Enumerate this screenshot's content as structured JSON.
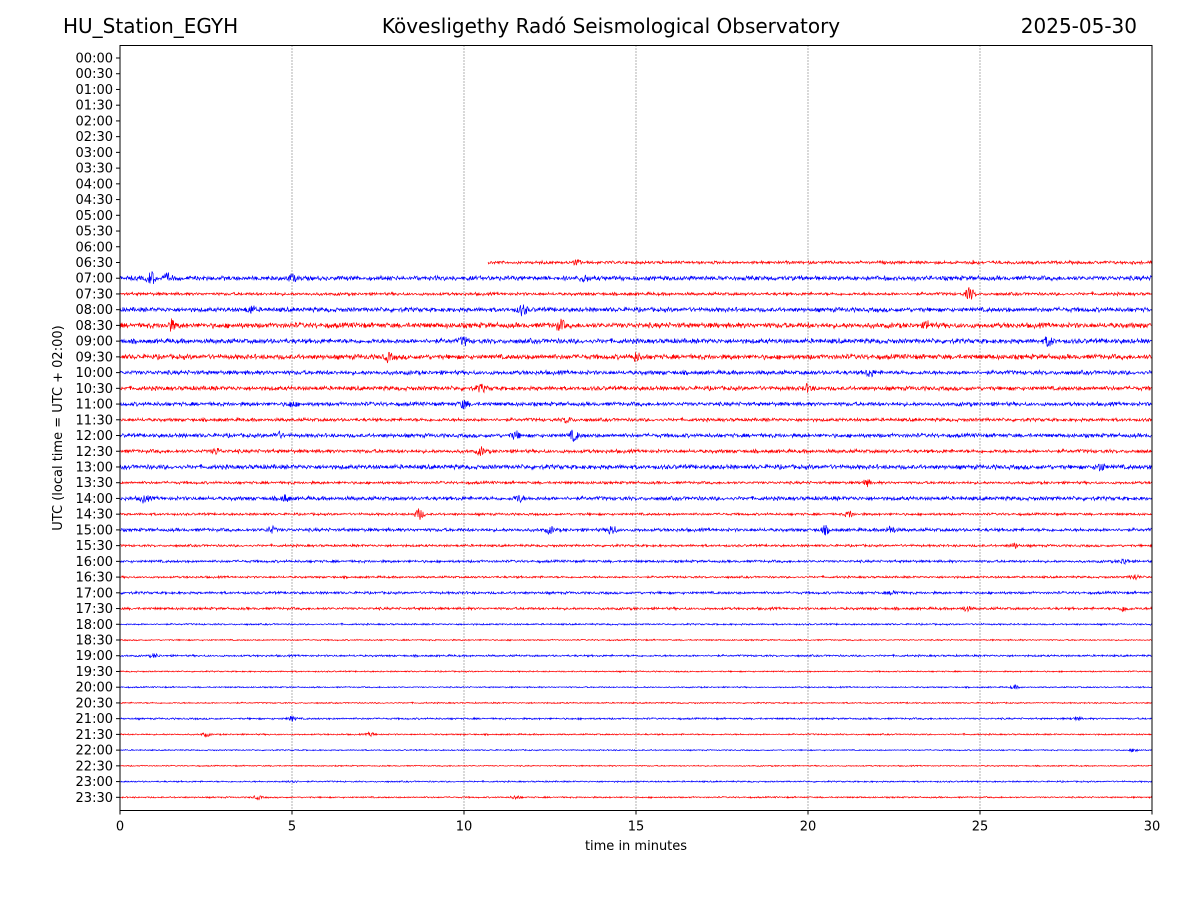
{
  "header": {
    "station": "HU_Station_EGYH",
    "observatory": "Kövesligethy Radó Seismological Observatory",
    "date": "2025-05-30"
  },
  "chart_data": {
    "type": "line",
    "title": "Kövesligethy Radó Seismological Observatory",
    "xlabel": "time in minutes",
    "ylabel": "UTC (local time = UTC + 02:00)",
    "xlim": [
      0,
      30
    ],
    "x_ticks": [
      "0",
      "5",
      "10",
      "15",
      "20",
      "25",
      "30"
    ],
    "grid": "vertical dotted lines at x = 5, 10, 15, 20, 25",
    "colors": [
      "#0000ff",
      "#ff0000"
    ],
    "rows": [
      {
        "label": "00:00",
        "trace": null
      },
      {
        "label": "00:30",
        "trace": null
      },
      {
        "label": "01:00",
        "trace": null
      },
      {
        "label": "01:30",
        "trace": null
      },
      {
        "label": "02:00",
        "trace": null
      },
      {
        "label": "02:30",
        "trace": null
      },
      {
        "label": "03:00",
        "trace": null
      },
      {
        "label": "03:30",
        "trace": null
      },
      {
        "label": "04:00",
        "trace": null
      },
      {
        "label": "04:30",
        "trace": null
      },
      {
        "label": "05:00",
        "trace": null
      },
      {
        "label": "05:30",
        "trace": null
      },
      {
        "label": "06:00",
        "trace": null
      },
      {
        "label": "06:30",
        "trace": {
          "color": "#ff0000",
          "start": 10.7,
          "end": 30,
          "amp": 2.0,
          "bursts": [
            [
              13.3,
              2.5
            ],
            [
              24.8,
              1.5
            ]
          ]
        }
      },
      {
        "label": "07:00",
        "trace": {
          "color": "#0000ff",
          "start": 0,
          "end": 30,
          "amp": 3.0,
          "bursts": [
            [
              0.9,
              6.5
            ],
            [
              1.4,
              4.0
            ],
            [
              5.0,
              3.5
            ],
            [
              13.5,
              3.5
            ]
          ]
        }
      },
      {
        "label": "07:30",
        "trace": {
          "color": "#ff0000",
          "start": 0,
          "end": 30,
          "amp": 2.0,
          "bursts": [
            [
              24.7,
              6.5
            ]
          ]
        }
      },
      {
        "label": "08:00",
        "trace": {
          "color": "#0000ff",
          "start": 0,
          "end": 30,
          "amp": 3.0,
          "bursts": [
            [
              3.8,
              4.0
            ],
            [
              11.7,
              5.5
            ]
          ]
        }
      },
      {
        "label": "08:30",
        "trace": {
          "color": "#ff0000",
          "start": 0,
          "end": 30,
          "amp": 3.5,
          "bursts": [
            [
              1.5,
              5.0
            ],
            [
              12.8,
              5.0
            ],
            [
              23.5,
              4.0
            ]
          ]
        }
      },
      {
        "label": "09:00",
        "trace": {
          "color": "#0000ff",
          "start": 0,
          "end": 30,
          "amp": 3.2,
          "bursts": [
            [
              27.0,
              5.0
            ],
            [
              10.0,
              4.0
            ]
          ]
        }
      },
      {
        "label": "09:30",
        "trace": {
          "color": "#ff0000",
          "start": 0,
          "end": 30,
          "amp": 3.3,
          "bursts": [
            [
              7.8,
              4.0
            ],
            [
              15.0,
              4.0
            ]
          ]
        }
      },
      {
        "label": "10:00",
        "trace": {
          "color": "#0000ff",
          "start": 0,
          "end": 30,
          "amp": 2.8,
          "bursts": [
            [
              21.8,
              4.0
            ]
          ]
        }
      },
      {
        "label": "10:30",
        "trace": {
          "color": "#ff0000",
          "start": 0,
          "end": 30,
          "amp": 2.8,
          "bursts": [
            [
              10.5,
              3.5
            ],
            [
              20.0,
              3.5
            ]
          ]
        }
      },
      {
        "label": "11:00",
        "trace": {
          "color": "#0000ff",
          "start": 0,
          "end": 30,
          "amp": 2.6,
          "bursts": [
            [
              10.0,
              4.5
            ],
            [
              5.0,
              3.0
            ]
          ]
        }
      },
      {
        "label": "11:30",
        "trace": {
          "color": "#ff0000",
          "start": 0,
          "end": 30,
          "amp": 2.2,
          "bursts": [
            [
              13.0,
              3.0
            ]
          ]
        }
      },
      {
        "label": "12:00",
        "trace": {
          "color": "#0000ff",
          "start": 0,
          "end": 30,
          "amp": 2.6,
          "bursts": [
            [
              11.5,
              4.0
            ],
            [
              13.2,
              5.5
            ],
            [
              4.6,
              3.0
            ]
          ]
        }
      },
      {
        "label": "12:30",
        "trace": {
          "color": "#ff0000",
          "start": 0,
          "end": 30,
          "amp": 2.4,
          "bursts": [
            [
              10.5,
              4.0
            ],
            [
              2.8,
              3.0
            ]
          ]
        }
      },
      {
        "label": "13:00",
        "trace": {
          "color": "#0000ff",
          "start": 0,
          "end": 30,
          "amp": 3.0,
          "bursts": [
            [
              28.5,
              4.0
            ]
          ]
        }
      },
      {
        "label": "13:30",
        "trace": {
          "color": "#ff0000",
          "start": 0,
          "end": 30,
          "amp": 1.8,
          "bursts": [
            [
              21.7,
              3.5
            ]
          ]
        }
      },
      {
        "label": "14:00",
        "trace": {
          "color": "#0000ff",
          "start": 0,
          "end": 30,
          "amp": 2.6,
          "bursts": [
            [
              0.7,
              3.5
            ],
            [
              4.8,
              3.5
            ],
            [
              11.6,
              3.5
            ]
          ]
        }
      },
      {
        "label": "14:30",
        "trace": {
          "color": "#ff0000",
          "start": 0,
          "end": 30,
          "amp": 1.6,
          "bursts": [
            [
              8.7,
              6.0
            ],
            [
              21.2,
              3.5
            ]
          ]
        }
      },
      {
        "label": "15:00",
        "trace": {
          "color": "#0000ff",
          "start": 0,
          "end": 30,
          "amp": 2.2,
          "bursts": [
            [
              4.4,
              3.5
            ],
            [
              12.5,
              3.5
            ],
            [
              14.3,
              5.0
            ],
            [
              20.5,
              4.0
            ],
            [
              22.4,
              4.0
            ]
          ]
        }
      },
      {
        "label": "15:30",
        "trace": {
          "color": "#ff0000",
          "start": 0,
          "end": 30,
          "amp": 1.6,
          "bursts": [
            [
              26.0,
              2.5
            ]
          ]
        }
      },
      {
        "label": "16:00",
        "trace": {
          "color": "#0000ff",
          "start": 0,
          "end": 30,
          "amp": 1.7,
          "bursts": [
            [
              29.2,
              3.0
            ]
          ]
        }
      },
      {
        "label": "16:30",
        "trace": {
          "color": "#ff0000",
          "start": 0,
          "end": 30,
          "amp": 1.4,
          "bursts": [
            [
              29.5,
              3.0
            ]
          ]
        }
      },
      {
        "label": "17:00",
        "trace": {
          "color": "#0000ff",
          "start": 0,
          "end": 30,
          "amp": 1.7,
          "bursts": [
            [
              22.5,
              2.5
            ]
          ]
        }
      },
      {
        "label": "17:30",
        "trace": {
          "color": "#ff0000",
          "start": 0,
          "end": 30,
          "amp": 1.7,
          "bursts": [
            [
              24.6,
              2.5
            ],
            [
              29.2,
              3.0
            ]
          ]
        }
      },
      {
        "label": "18:00",
        "trace": {
          "color": "#0000ff",
          "start": 0,
          "end": 30,
          "amp": 1.1,
          "bursts": []
        }
      },
      {
        "label": "18:30",
        "trace": {
          "color": "#ff0000",
          "start": 0,
          "end": 30,
          "amp": 0.9,
          "bursts": []
        }
      },
      {
        "label": "19:00",
        "trace": {
          "color": "#0000ff",
          "start": 0,
          "end": 30,
          "amp": 1.3,
          "bursts": [
            [
              1.0,
              2.0
            ]
          ]
        }
      },
      {
        "label": "19:30",
        "trace": {
          "color": "#ff0000",
          "start": 0,
          "end": 30,
          "amp": 0.9,
          "bursts": []
        }
      },
      {
        "label": "20:00",
        "trace": {
          "color": "#0000ff",
          "start": 0,
          "end": 30,
          "amp": 0.9,
          "bursts": [
            [
              26.0,
              2.0
            ]
          ]
        }
      },
      {
        "label": "20:30",
        "trace": {
          "color": "#ff0000",
          "start": 0,
          "end": 30,
          "amp": 0.9,
          "bursts": []
        }
      },
      {
        "label": "21:00",
        "trace": {
          "color": "#0000ff",
          "start": 0,
          "end": 30,
          "amp": 1.2,
          "bursts": [
            [
              5.0,
              2.5
            ],
            [
              27.8,
              2.0
            ]
          ]
        }
      },
      {
        "label": "21:30",
        "trace": {
          "color": "#ff0000",
          "start": 0,
          "end": 30,
          "amp": 1.0,
          "bursts": [
            [
              2.5,
              2.0
            ],
            [
              7.3,
              2.0
            ]
          ]
        }
      },
      {
        "label": "22:00",
        "trace": {
          "color": "#0000ff",
          "start": 0,
          "end": 30,
          "amp": 0.8,
          "bursts": [
            [
              29.5,
              2.0
            ]
          ]
        }
      },
      {
        "label": "22:30",
        "trace": {
          "color": "#ff0000",
          "start": 0,
          "end": 30,
          "amp": 0.8,
          "bursts": []
        }
      },
      {
        "label": "23:00",
        "trace": {
          "color": "#0000ff",
          "start": 0,
          "end": 30,
          "amp": 1.0,
          "bursts": [
            [
              5.0,
              2.0
            ]
          ]
        }
      },
      {
        "label": "23:30",
        "trace": {
          "color": "#ff0000",
          "start": 0,
          "end": 30,
          "amp": 1.0,
          "bursts": [
            [
              4.0,
              2.0
            ],
            [
              11.5,
              2.0
            ]
          ]
        }
      }
    ]
  }
}
